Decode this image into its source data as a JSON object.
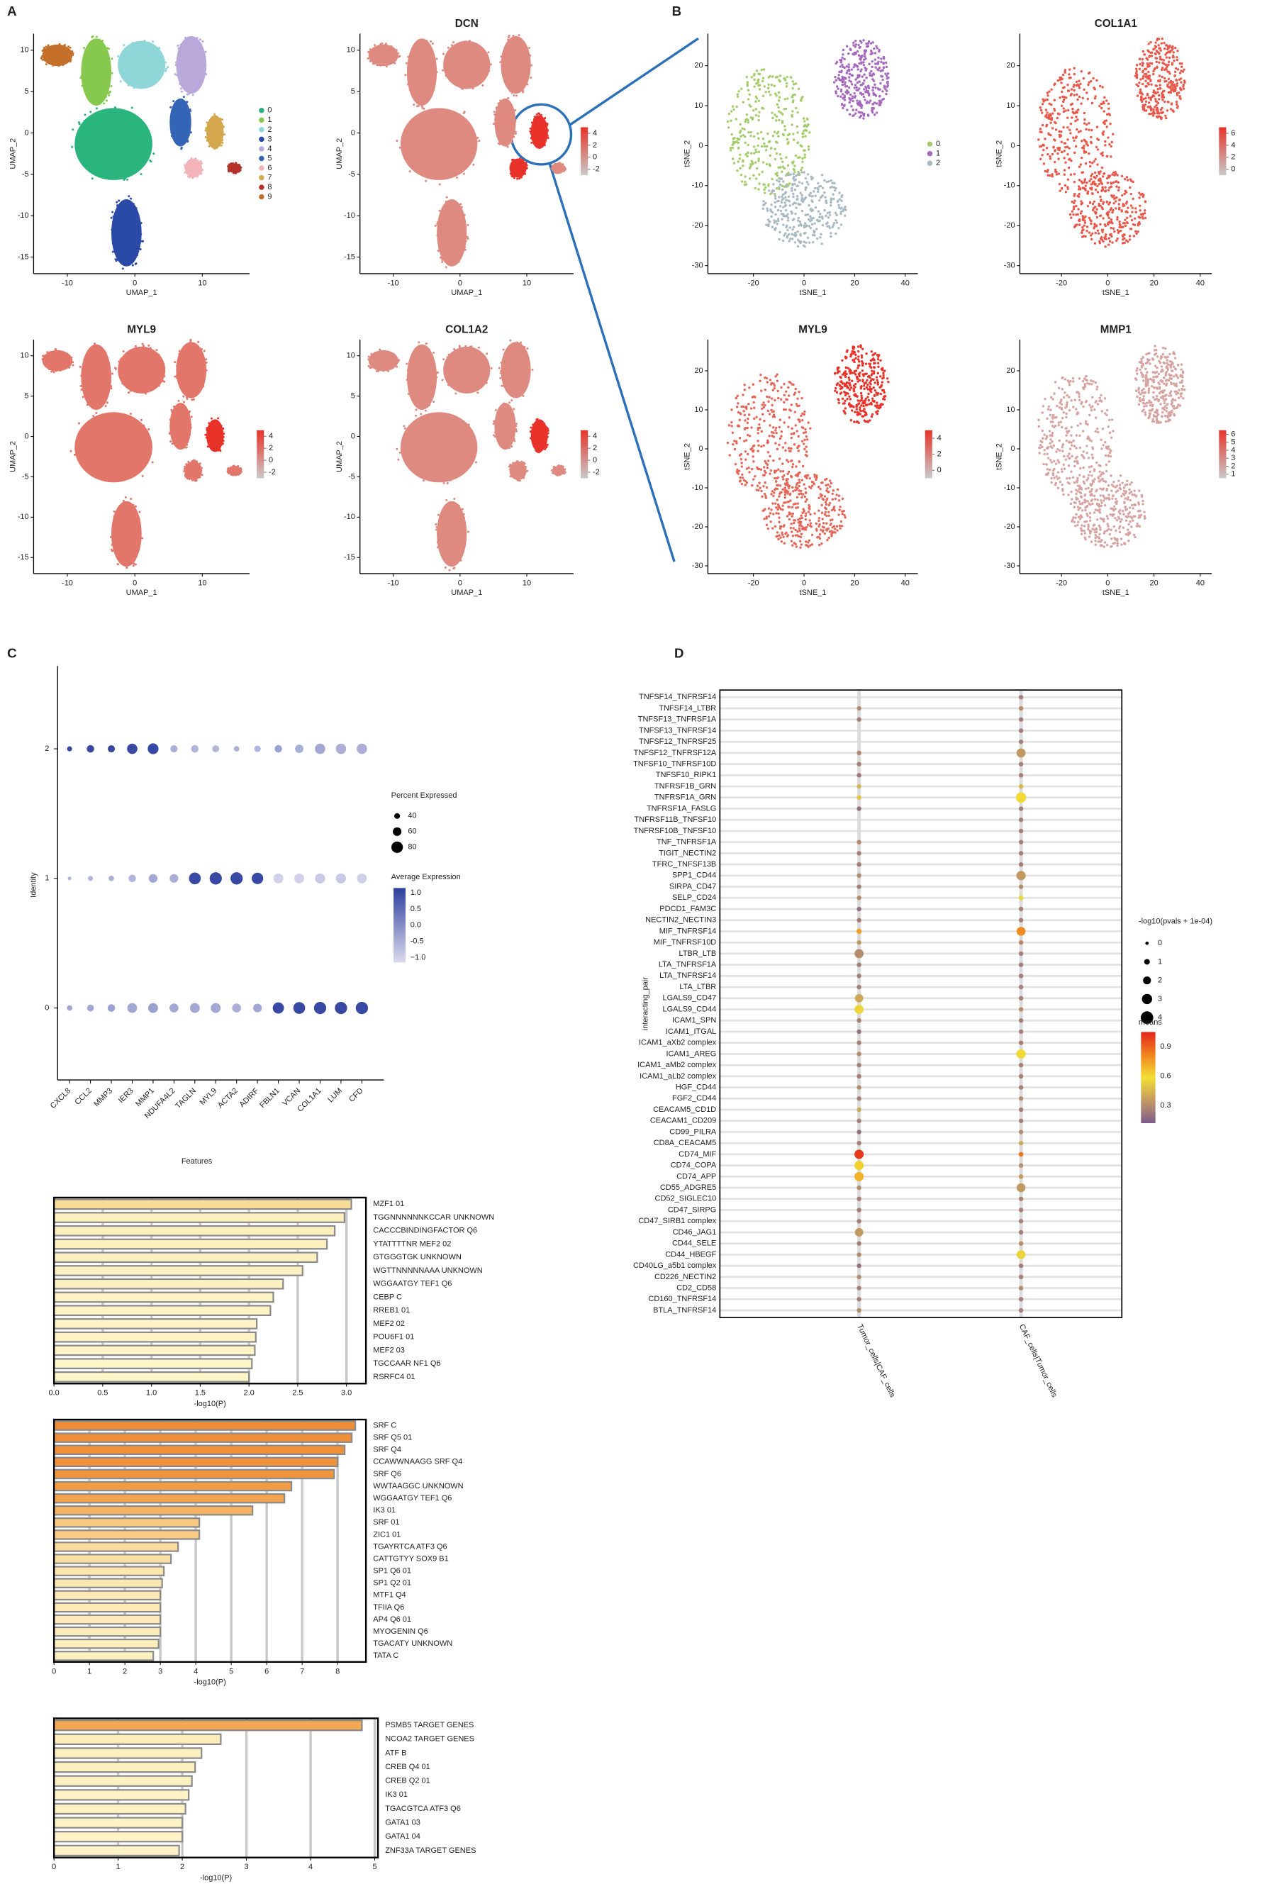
{
  "panels": [
    "A",
    "B",
    "C",
    "D"
  ],
  "chart_data": [
    {
      "type": "embedding",
      "x_label": "UMAP_1",
      "y_label": "UMAP_2",
      "xlim": [
        -15,
        17
      ],
      "ylim": [
        -17,
        12
      ],
      "xticks": [
        -10,
        0,
        10
      ],
      "yticks": [
        -15,
        -10,
        -5,
        0,
        5,
        10
      ],
      "legend": {
        "categories": [
          "0",
          "1",
          "2",
          "3",
          "4",
          "5",
          "6",
          "7",
          "8",
          "9"
        ],
        "colors": [
          "#2bb57e",
          "#86c94e",
          "#8fd6d8",
          "#2b4aa8",
          "#b9a8da",
          "#3464b5",
          "#f2b4b8",
          "#d4a74c",
          "#b5322a",
          "#c4702a"
        ]
      }
    },
    {
      "type": "embedding",
      "title": "DCN",
      "x_label": "UMAP_1",
      "y_label": "UMAP_2",
      "xlim": [
        -15,
        17
      ],
      "ylim": [
        -17,
        12
      ],
      "xticks": [
        -10,
        0,
        10
      ],
      "yticks": [
        -15,
        -10,
        -5,
        0,
        5,
        10
      ],
      "point_color": "#df8a80",
      "colorbar": {
        "lim": [
          -3,
          5
        ],
        "ticks": [
          -2,
          0,
          2,
          4
        ],
        "colors": [
          "#c9c9c9",
          "#e8332a"
        ]
      }
    },
    {
      "type": "embedding",
      "title": "MYL9",
      "x_label": "UMAP_1",
      "y_label": "UMAP_2",
      "xlim": [
        -15,
        17
      ],
      "ylim": [
        -17,
        12
      ],
      "xticks": [
        -10,
        0,
        10
      ],
      "yticks": [
        -15,
        -10,
        -5,
        0,
        5,
        10
      ],
      "point_color": "#e2766a",
      "colorbar": {
        "lim": [
          -3,
          5
        ],
        "ticks": [
          -2,
          0,
          2,
          4
        ],
        "colors": [
          "#c9c9c9",
          "#e8332a"
        ]
      }
    },
    {
      "type": "embedding",
      "title": "COL1A2",
      "x_label": "UMAP_1",
      "y_label": "UMAP_2",
      "xlim": [
        -15,
        17
      ],
      "ylim": [
        -17,
        12
      ],
      "xticks": [
        -10,
        0,
        10
      ],
      "yticks": [
        -15,
        -10,
        -5,
        0,
        5,
        10
      ],
      "point_color": "#de8a80",
      "colorbar": {
        "lim": [
          -3,
          5
        ],
        "ticks": [
          -2,
          0,
          2,
          4
        ],
        "colors": [
          "#c9c9c9",
          "#e8332a"
        ]
      }
    },
    {
      "type": "embedding",
      "x_label": "tSNE_1",
      "y_label": "tSNE_2",
      "xlim": [
        -38,
        45
      ],
      "ylim": [
        -32,
        28
      ],
      "xticks": [
        -20,
        0,
        20,
        40
      ],
      "yticks": [
        -30,
        -20,
        -10,
        0,
        10,
        20
      ],
      "legend": {
        "categories": [
          "0",
          "1",
          "2"
        ],
        "colors": [
          "#a3cc6a",
          "#a569bd",
          "#a9b9c2"
        ]
      }
    },
    {
      "type": "embedding",
      "title": "COL1A1",
      "x_label": "tSNE_1",
      "y_label": "tSNE_2",
      "xlim": [
        -38,
        45
      ],
      "ylim": [
        -32,
        28
      ],
      "xticks": [
        -20,
        0,
        20,
        40
      ],
      "yticks": [
        -30,
        -20,
        -10,
        0,
        10,
        20
      ],
      "point_color": "#e8584a",
      "colorbar": {
        "lim": [
          -1,
          7
        ],
        "ticks": [
          0,
          2,
          4,
          6
        ],
        "colors": [
          "#c9c9c9",
          "#e8332a"
        ]
      }
    },
    {
      "type": "embedding",
      "title": "MYL9",
      "x_label": "tSNE_1",
      "y_label": "tSNE_2",
      "xlim": [
        -38,
        45
      ],
      "ylim": [
        -32,
        28
      ],
      "xticks": [
        -20,
        0,
        20,
        40
      ],
      "yticks": [
        -30,
        -20,
        -10,
        0,
        10,
        20
      ],
      "point_color": "#e4675a",
      "colorbar": {
        "lim": [
          -1,
          5
        ],
        "ticks": [
          0,
          2,
          4
        ],
        "colors": [
          "#c9c9c9",
          "#e8332a"
        ]
      }
    },
    {
      "type": "embedding",
      "title": "MMP1",
      "x_label": "tSNE_1",
      "y_label": "tSNE_2",
      "xlim": [
        -38,
        45
      ],
      "ylim": [
        -32,
        28
      ],
      "xticks": [
        -20,
        0,
        20,
        40
      ],
      "yticks": [
        -30,
        -20,
        -10,
        0,
        10,
        20
      ],
      "point_color": "#d6a3a1",
      "colorbar": {
        "lim": [
          0.5,
          6.5
        ],
        "ticks": [
          1,
          2,
          3,
          4,
          5,
          6
        ],
        "colors": [
          "#c9c9c9",
          "#e8332a"
        ]
      }
    },
    {
      "type": "dotplot",
      "x_label": "Features",
      "y_label": "Identity",
      "categories": [
        "CXCL8",
        "CCL2",
        "MMP3",
        "IER3",
        "MMP1",
        "NDUFA4L2",
        "TAGLN",
        "MYL9",
        "ACTA2",
        "ADIRF",
        "FBLN1",
        "VCAN",
        "COL1A1",
        "LUM",
        "CFD"
      ],
      "series": [
        {
          "name": "0",
          "pct": [
            38,
            48,
            52,
            68,
            68,
            62,
            68,
            68,
            62,
            60,
            78,
            82,
            85,
            85,
            85
          ],
          "avg": [
            -0.4,
            -0.4,
            -0.3,
            -0.4,
            -0.3,
            -0.4,
            -0.4,
            -0.4,
            -0.5,
            -0.4,
            1.0,
            1.0,
            1.0,
            1.0,
            1.0
          ]
        },
        {
          "name": "1",
          "pct": [
            25,
            35,
            38,
            52,
            60,
            60,
            82,
            85,
            85,
            80,
            68,
            68,
            70,
            70,
            68
          ],
          "avg": [
            -0.6,
            -0.6,
            -0.5,
            -0.6,
            -0.4,
            -0.5,
            1.0,
            1.0,
            1.0,
            1.0,
            -1.0,
            -1.0,
            -0.9,
            -0.9,
            -1.0
          ]
        },
        {
          "name": "2",
          "pct": [
            35,
            52,
            50,
            72,
            75,
            50,
            52,
            48,
            38,
            45,
            52,
            58,
            72,
            72,
            72
          ],
          "avg": [
            1.0,
            1.0,
            1.0,
            1.0,
            1.0,
            -0.5,
            -0.6,
            -0.6,
            -0.5,
            -0.6,
            -0.3,
            -0.5,
            -0.4,
            -0.5,
            -0.5
          ]
        }
      ],
      "size_legend": {
        "title": "Percent Expressed",
        "ticks": [
          40,
          60,
          80
        ]
      },
      "color_legend": {
        "title": "Average Expression",
        "lim": [
          -1.15,
          1.15
        ],
        "ticks": [
          {
            "value": 1,
            "label": "1.0"
          },
          0.5,
          {
            "value": 0,
            "label": "0.0"
          },
          -0.5,
          {
            "value": -1,
            "label": "−1.0"
          }
        ],
        "colors": [
          "#dcdaee",
          "#2d3f9e"
        ]
      }
    },
    {
      "type": "barh",
      "x_label": "-log10(P)",
      "xlim": [
        0,
        3.2
      ],
      "xticks": [
        {
          "value": 0,
          "label": "0.0"
        },
        0.5,
        {
          "value": 1,
          "label": "1.0"
        },
        1.5,
        {
          "value": 2,
          "label": "2.0"
        },
        2.5,
        {
          "value": 3,
          "label": "3.0"
        }
      ],
      "grid": true,
      "categories": [
        "MZF1 01",
        "TGGNNNNNNKCCAR UNKNOWN",
        "CACCCBINDINGFACTOR Q6",
        "YTATTTTNR MEF2 02",
        "GTGGGTGK UNKNOWN",
        "WGTTNNNNNAAA UNKNOWN",
        "WGGAATGY TEF1 Q6",
        "CEBP C",
        "RREB1 01",
        "MEF2 02",
        "POU6F1 01",
        "MEF2 03",
        "TGCCAAR NF1 Q6",
        "RSRFC4 01"
      ],
      "values": [
        3.05,
        2.98,
        2.88,
        2.8,
        2.7,
        2.55,
        2.35,
        2.25,
        2.22,
        2.08,
        2.07,
        2.06,
        2.03,
        2.0
      ],
      "colors": [
        "#f9dc98",
        "#fcefbe",
        "#fcefbe",
        "#fcf0c0",
        "#fcf0c0",
        "#fcf1c2",
        "#fcf1c2",
        "#fdf2c4",
        "#fdf2c4",
        "#fdf3c6",
        "#fdf3c6",
        "#fdf3c6",
        "#fdf4c8",
        "#fdf4c8"
      ]
    },
    {
      "type": "barh",
      "x_label": "-log10(P)",
      "xlim": [
        0,
        8.8
      ],
      "xticks": [
        0,
        1,
        2,
        3,
        4,
        5,
        6,
        7,
        8
      ],
      "grid": true,
      "categories": [
        "SRF C",
        "SRF Q5 01",
        "SRF Q4",
        "CCAWWNAAGG SRF Q4",
        "SRF Q6",
        "WWTAAGGC UNKNOWN",
        "WGGAATGY TEF1 Q6",
        "IK3 01",
        "SRF 01",
        "ZIC1 01",
        "TGAYRTCA ATF3 Q6",
        "CATTGTYY SOX9 B1",
        "SP1 Q6 01",
        "SP1 Q2 01",
        "MTF1 Q4",
        "TFIIA Q6",
        "AP4 Q6 01",
        "MYOGENIN Q6",
        "TGACATY UNKNOWN",
        "TATA C"
      ],
      "values": [
        8.5,
        8.4,
        8.2,
        8.0,
        7.9,
        6.7,
        6.5,
        5.6,
        4.1,
        4.1,
        3.5,
        3.3,
        3.1,
        3.05,
        3.0,
        3.0,
        3.0,
        3.0,
        2.95,
        2.8
      ],
      "colors": [
        "#ef8e36",
        "#ef8f37",
        "#f09139",
        "#f0933b",
        "#f0953d",
        "#f29d46",
        "#f3a450",
        "#f5b262",
        "#f8c880",
        "#f8cb84",
        "#f9dc9e",
        "#fae0a4",
        "#fbe6ae",
        "#fbe7b0",
        "#fce9b4",
        "#fce9b4",
        "#fcebb8",
        "#fcebb8",
        "#fdeebc",
        "#fdf0c0"
      ]
    },
    {
      "type": "barh",
      "x_label": "-log10(P)",
      "xlim": [
        0,
        5.05
      ],
      "xticks": [
        0,
        1,
        2,
        3,
        4,
        5
      ],
      "grid": true,
      "categories": [
        "PSMB5 TARGET GENES",
        "NCOA2 TARGET GENES",
        "ATF B",
        "CREB Q4 01",
        "CREB Q2 01",
        "IK3 01",
        "TGACGTCA ATF3 Q6",
        "GATA1 03",
        "GATA1 04",
        "ZNF33A TARGET GENES"
      ],
      "values": [
        4.8,
        2.6,
        2.3,
        2.2,
        2.15,
        2.1,
        2.05,
        2.0,
        2.0,
        1.95
      ],
      "colors": [
        "#f3a853",
        "#fcecb8",
        "#fdf0c0",
        "#fdf1c2",
        "#fdf1c2",
        "#fdf2c4",
        "#fdf2c4",
        "#fdf3c6",
        "#fdf3c6",
        "#fdf3c6"
      ]
    },
    {
      "type": "pairdot",
      "y_label": "interacting_pair",
      "categories": [
        "TNFSF14_TNFRSF14",
        "TNFSF14_LTBR",
        "TNFSF13_TNFRSF1A",
        "TNFSF13_TNFRSF14",
        "TNFSF12_TNFRSF25",
        "TNFSF12_TNFRSF12A",
        "TNFSF10_TNFRSF10D",
        "TNFSF10_RIPK1",
        "TNFRSF1B_GRN",
        "TNFRSF1A_GRN",
        "TNFRSF1A_FASLG",
        "TNFRSF11B_TNFSF10",
        "TNFRSF10B_TNFSF10",
        "TNF_TNFRSF1A",
        "TIGIT_NECTIN2",
        "TFRC_TNFSF13B",
        "SPP1_CD44",
        "SIRPA_CD47",
        "SELP_CD24",
        "PDCD1_FAM3C",
        "NECTIN2_NECTIN3",
        "MIF_TNFRSF14",
        "MIF_TNFRSF10D",
        "LTBR_LTB",
        "LTA_TNFRSF1A",
        "LTA_TNFRSF14",
        "LTA_LTBR",
        "LGALS9_CD47",
        "LGALS9_CD44",
        "ICAM1_SPN",
        "ICAM1_ITGAL",
        "ICAM1_aXb2 complex",
        "ICAM1_AREG",
        "ICAM1_aMb2 complex",
        "ICAM1_aLb2 complex",
        "HGF_CD44",
        "FGF2_CD44",
        "CEACAM5_CD1D",
        "CEACAM1_CD209",
        "CD99_PILRA",
        "CD8A_CEACAM5",
        "CD74_MIF",
        "CD74_COPA",
        "CD74_APP",
        "CD55_ADGRE5",
        "CD52_SIGLEC10",
        "CD47_SIRPG",
        "CD47_SIRB1 complex",
        "CD46_JAG1",
        "CD44_SELE",
        "CD44_HBEGF",
        "CD40LG_a5b1 complex",
        "CD226_NECTIN2",
        "CD2_CD58",
        "CD160_TNFRSF14",
        "BTLA_TNFRSF14"
      ],
      "series": [
        {
          "name": "Tumor_cells|CAF_cells",
          "values": [
            null,
            0.5,
            0.5,
            null,
            null,
            0.5,
            0.5,
            0.5,
            0.5,
            0.6,
            0.5,
            null,
            null,
            0.5,
            0.5,
            0.5,
            0.5,
            0.5,
            0.5,
            0.5,
            0.5,
            0.8,
            0.5,
            2.5,
            0.5,
            0.5,
            0.5,
            2.2,
            2.5,
            0.5,
            0.5,
            0.5,
            0.5,
            0.5,
            0.5,
            0.5,
            0.5,
            0.5,
            0.5,
            0.5,
            0.5,
            2.6,
            2.6,
            2.6,
            0.5,
            0.5,
            0.5,
            0.5,
            2.2,
            0.5,
            0.5,
            0.5,
            0.5,
            0.5,
            0.5,
            0.5
          ],
          "means": [
            null,
            0.3,
            0.25,
            null,
            null,
            0.28,
            0.25,
            0.22,
            0.45,
            0.5,
            0.2,
            null,
            null,
            0.3,
            0.25,
            0.25,
            0.3,
            0.25,
            0.3,
            0.2,
            0.25,
            0.75,
            0.35,
            0.3,
            0.25,
            0.25,
            0.25,
            0.4,
            0.55,
            0.25,
            0.2,
            0.25,
            0.3,
            0.25,
            0.25,
            0.3,
            0.25,
            0.4,
            0.25,
            0.2,
            0.25,
            1.0,
            0.62,
            0.7,
            0.3,
            0.25,
            0.25,
            0.25,
            0.35,
            0.25,
            0.3,
            0.2,
            0.3,
            0.25,
            0.25,
            0.3
          ]
        },
        {
          "name": "CAF_cells|Tumor_cells",
          "values": [
            0.5,
            0.5,
            0.5,
            0.5,
            0.5,
            2.5,
            0.5,
            0.5,
            0.5,
            3.0,
            0.5,
            0.5,
            0.5,
            0.5,
            0.5,
            0.5,
            2.6,
            0.5,
            0.6,
            0.5,
            0.5,
            2.4,
            0.5,
            0.5,
            0.5,
            0.5,
            0.5,
            0.5,
            0.5,
            0.5,
            0.5,
            0.5,
            2.6,
            0.5,
            0.5,
            0.5,
            0.5,
            0.5,
            0.5,
            0.5,
            0.5,
            0.6,
            0.5,
            0.5,
            2.4,
            0.5,
            0.5,
            0.5,
            0.5,
            0.5,
            2.4,
            0.5,
            0.5,
            0.5,
            0.5,
            0.5
          ],
          "means": [
            0.25,
            0.3,
            0.25,
            0.25,
            0.25,
            0.35,
            0.25,
            0.25,
            0.45,
            0.6,
            0.25,
            0.25,
            0.25,
            0.25,
            0.25,
            0.25,
            0.35,
            0.3,
            0.55,
            0.25,
            0.25,
            0.8,
            0.3,
            0.25,
            0.25,
            0.25,
            0.25,
            0.25,
            0.3,
            0.25,
            0.25,
            0.25,
            0.6,
            0.25,
            0.25,
            0.25,
            0.3,
            0.25,
            0.25,
            0.3,
            0.4,
            0.85,
            0.3,
            0.35,
            0.35,
            0.25,
            0.25,
            0.25,
            0.25,
            0.3,
            0.55,
            0.25,
            0.25,
            0.3,
            0.25,
            0.25
          ]
        }
      ],
      "size_legend": {
        "title": "-log10(pvals + 1e-04)",
        "ticks": [
          0,
          1,
          2,
          3,
          4
        ]
      },
      "color_legend": {
        "title": "means",
        "lim": [
          0.12,
          1.05
        ],
        "ticks": [
          0.3,
          0.6,
          0.9
        ],
        "colors": [
          "#7d5a8c",
          "#c49a62",
          "#f3df34",
          "#f1841f",
          "#e3241b"
        ]
      }
    }
  ]
}
